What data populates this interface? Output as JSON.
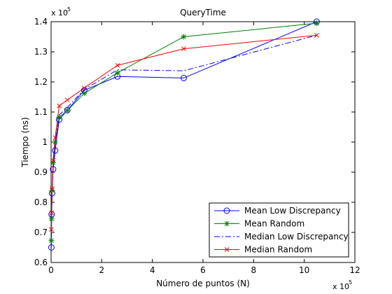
{
  "chart_data": {
    "type": "line",
    "title": "QueryTime",
    "xlabel": "Número de puntos (N)",
    "ylabel": "Tiempo (ns)",
    "x_exponent": {
      "base": "x 10",
      "power": "5"
    },
    "y_exponent": {
      "base": "x 10",
      "power": "5"
    },
    "xlim": [
      0,
      12
    ],
    "ylim": [
      0.6,
      1.4
    ],
    "x_ticks": [
      "0",
      "2",
      "4",
      "6",
      "8",
      "10",
      "12"
    ],
    "y_ticks": [
      "0.6",
      "0.7",
      "0.8",
      "0.9",
      "1",
      "1.1",
      "1.2",
      "1.3",
      "1.4"
    ],
    "grid": false,
    "legend_position": "bottom-right",
    "series": [
      {
        "name": "Mean Low Discrepancy",
        "color": "#0000ff",
        "line_style": "solid",
        "marker": "circle",
        "x": [
          0.01,
          0.02,
          0.04,
          0.08,
          0.16,
          0.32,
          0.64,
          1.31,
          2.62,
          5.24,
          10.49
        ],
        "y": [
          0.65,
          0.76,
          0.83,
          0.91,
          0.972,
          1.075,
          1.106,
          1.172,
          1.218,
          1.213,
          1.4
        ]
      },
      {
        "name": "Mean Random",
        "color": "#008000",
        "line_style": "solid",
        "marker": "star",
        "x": [
          0.01,
          0.02,
          0.04,
          0.08,
          0.16,
          0.32,
          0.64,
          1.31,
          2.62,
          5.24,
          10.49
        ],
        "y": [
          0.673,
          0.745,
          0.84,
          0.932,
          1.0,
          1.083,
          1.105,
          1.162,
          1.23,
          1.35,
          1.395
        ]
      },
      {
        "name": "Median Low Discrepancy",
        "color": "#0000ff",
        "line_style": "dashdot",
        "marker": "none",
        "x": [
          0.01,
          0.02,
          0.04,
          0.08,
          0.16,
          0.32,
          0.64,
          1.31,
          2.62,
          5.24,
          10.49
        ],
        "y": [
          0.68,
          0.75,
          0.84,
          0.92,
          1.0,
          1.09,
          1.115,
          1.175,
          1.24,
          1.237,
          1.355
        ]
      },
      {
        "name": "Median Random",
        "color": "#ff0000",
        "line_style": "solid",
        "marker": "x",
        "x": [
          0.01,
          0.02,
          0.04,
          0.08,
          0.16,
          0.32,
          0.64,
          1.31,
          2.62,
          5.24,
          10.49
        ],
        "y": [
          0.71,
          0.765,
          0.845,
          0.94,
          1.015,
          1.12,
          1.14,
          1.18,
          1.255,
          1.31,
          1.355
        ]
      }
    ]
  }
}
